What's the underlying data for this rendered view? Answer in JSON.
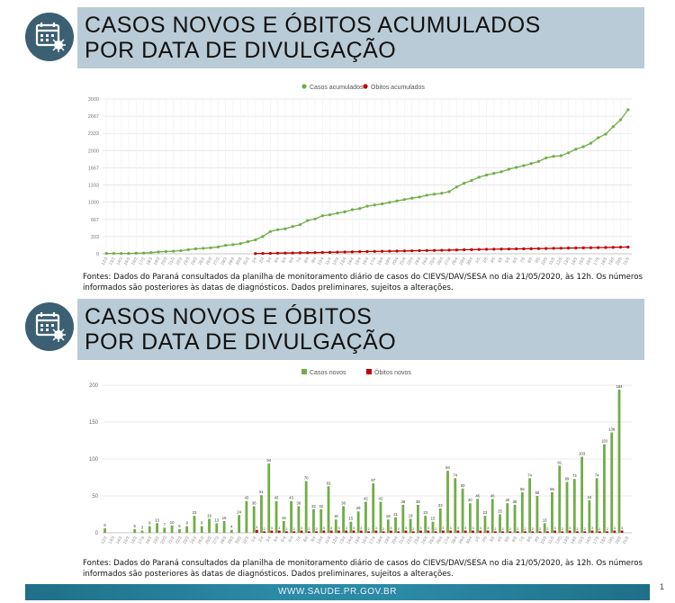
{
  "section1": {
    "title_line1": "CASOS NOVOS E ÓBITOS ACUMULADOS",
    "title_line2": "POR DATA DE DIVULGAÇÃO",
    "source": "Fontes: Dados do Paraná consultados da planilha de monitoramento diário de casos do CIEVS/DAV/SESA no dia 21/05/2020, às 12h. Os números informados são posteriores às datas de diagnósticos. Dados preliminares, sujeitos a alterações."
  },
  "section2": {
    "title_line1": "CASOS NOVOS E ÓBITOS",
    "title_line2": "POR DATA DE DIVULGAÇÃO",
    "source": "Fontes: Dados do Paraná consultados da planilha de monitoramento diário de casos do CIEVS/DAV/SESA no dia 21/05/2020, às 12h. Os números informados são posteriores às datas de diagnósticos. Dados preliminares, sujeitos a alterações."
  },
  "footer": {
    "url": "WWW.SAUDE.PR.GOV.BR",
    "page_number": "1"
  },
  "colors": {
    "green": "#70ad47",
    "red": "#c00000",
    "banner": "#b9cbd6",
    "icon": "#3d5f73",
    "footer": "#2b8aa6"
  },
  "icon_name": "calendar-virus-icon",
  "chart_data": [
    {
      "type": "line",
      "ylim": [
        0,
        3000
      ],
      "yticks": [
        0,
        333,
        667,
        1000,
        1333,
        1667,
        2000,
        2333,
        2667,
        3000
      ],
      "legend_position": "top-center",
      "grid": true,
      "x": [
        "12/3",
        "13/3",
        "14/3",
        "15/3",
        "16/3",
        "17/3",
        "18/3",
        "19/3",
        "20/3",
        "21/3",
        "22/3",
        "23/3",
        "24/3",
        "25/3",
        "26/3",
        "27/3",
        "28/3",
        "29/3",
        "30/3",
        "31/3",
        "1/4",
        "2/4",
        "3/4",
        "4/4",
        "5/4",
        "6/4",
        "7/4",
        "8/4",
        "9/4",
        "10/4",
        "11/4",
        "12/4",
        "13/4",
        "14/4",
        "15/4",
        "16/4",
        "17/4",
        "18/4",
        "19/4",
        "20/4",
        "21/4",
        "22/4",
        "23/4",
        "24/4",
        "25/4",
        "26/4",
        "27/4",
        "28/4",
        "29/4",
        "30/4",
        "1/5",
        "2/5",
        "3/5",
        "4/5",
        "5/5",
        "6/5",
        "7/5",
        "8/5",
        "9/5",
        "10/5",
        "11/5",
        "12/5",
        "13/5",
        "14/5",
        "15/5",
        "16/5",
        "17/5",
        "18/5",
        "19/5",
        "20/5",
        "21/5"
      ],
      "series": [
        {
          "name": "Casos acumulados",
          "color": "#70ad47",
          "values": [
            6,
            6,
            6,
            6,
            11,
            14,
            23,
            36,
            43,
            50,
            60,
            80,
            96,
            106,
            117,
            134,
            164,
            179,
            196,
            235,
            271,
            336,
            431,
            468,
            484,
            528,
            564,
            644,
            675,
            737,
            757,
            788,
            813,
            855,
            876,
            923,
            946,
            967,
            997,
            1025,
            1052,
            1078,
            1100,
            1135,
            1155,
            1173,
            1205,
            1295,
            1368,
            1421,
            1485,
            1526,
            1559,
            1589,
            1639,
            1674,
            1710,
            1749,
            1790,
            1858,
            1889,
            1901,
            1957,
            2028,
            2075,
            2143,
            2250,
            2320,
            2464,
            2598,
            2792
          ]
        },
        {
          "name": "Óbitos acumulados",
          "color": "#c00000",
          "values": [
            0,
            0,
            0,
            0,
            0,
            0,
            0,
            0,
            0,
            0,
            0,
            0,
            0,
            0,
            0,
            0,
            0,
            0,
            0,
            0,
            4,
            6,
            9,
            12,
            14,
            16,
            19,
            21,
            23,
            26,
            29,
            32,
            35,
            38,
            41,
            43,
            46,
            48,
            51,
            53,
            56,
            58,
            61,
            64,
            66,
            69,
            72,
            75,
            78,
            81,
            84,
            87,
            89,
            91,
            93,
            95,
            97,
            99,
            101,
            103,
            106,
            108,
            111,
            113,
            115,
            118,
            120,
            122,
            125,
            128,
            131
          ]
        }
      ]
    },
    {
      "type": "bar",
      "ylim": [
        0,
        200
      ],
      "yticks": [
        0,
        50,
        100,
        150,
        200
      ],
      "legend_position": "top-center",
      "grid": true,
      "x": [
        "12/3",
        "13/3",
        "14/3",
        "15/3",
        "16/3",
        "17/3",
        "18/3",
        "19/3",
        "20/3",
        "21/3",
        "22/3",
        "23/3",
        "24/3",
        "25/3",
        "26/3",
        "27/3",
        "28/3",
        "29/3",
        "30/3",
        "31/3",
        "1/4",
        "2/4",
        "3/4",
        "4/4",
        "5/4",
        "6/4",
        "7/4",
        "8/4",
        "9/4",
        "10/4",
        "11/4",
        "12/4",
        "13/4",
        "14/4",
        "15/4",
        "16/4",
        "17/4",
        "18/4",
        "19/4",
        "20/4",
        "21/4",
        "22/4",
        "23/4",
        "24/4",
        "25/4",
        "26/4",
        "27/4",
        "28/4",
        "29/4",
        "30/4",
        "1/5",
        "2/5",
        "3/5",
        "4/5",
        "5/5",
        "6/5",
        "7/5",
        "8/5",
        "9/5",
        "10/5",
        "11/5",
        "12/5",
        "13/5",
        "14/5",
        "15/5",
        "16/5",
        "17/5",
        "18/5",
        "19/5",
        "20/5",
        "21/5"
      ],
      "series": [
        {
          "name": "Casos novos",
          "color": "#70ad47",
          "values": [
            6,
            0,
            0,
            0,
            5,
            3,
            9,
            13,
            7,
            10,
            5,
            9,
            23,
            9,
            19,
            13,
            16,
            4,
            24,
            43,
            36,
            51,
            94,
            43,
            16,
            43,
            36,
            70,
            32,
            32,
            63,
            18,
            36,
            15,
            29,
            42,
            67,
            42,
            18,
            21,
            38,
            19,
            38,
            23,
            15,
            33,
            84,
            74,
            60,
            40,
            46,
            23,
            46,
            25,
            40,
            38,
            55,
            74,
            50,
            13,
            55,
            91,
            69,
            73,
            103,
            44,
            74,
            120,
            136,
            194,
            0
          ]
        },
        {
          "name": "Óbitos novos",
          "color": "#c00000",
          "values": [
            0,
            0,
            0,
            0,
            0,
            0,
            0,
            0,
            0,
            0,
            0,
            0,
            0,
            0,
            0,
            0,
            0,
            0,
            0,
            0,
            4,
            2,
            3,
            3,
            2,
            2,
            3,
            2,
            2,
            3,
            3,
            3,
            3,
            3,
            3,
            2,
            3,
            2,
            3,
            2,
            3,
            2,
            3,
            3,
            2,
            3,
            3,
            3,
            3,
            3,
            3,
            3,
            2,
            2,
            2,
            2,
            2,
            2,
            2,
            2,
            3,
            2,
            3,
            2,
            2,
            3,
            2,
            2,
            3,
            3,
            0
          ]
        }
      ]
    }
  ]
}
